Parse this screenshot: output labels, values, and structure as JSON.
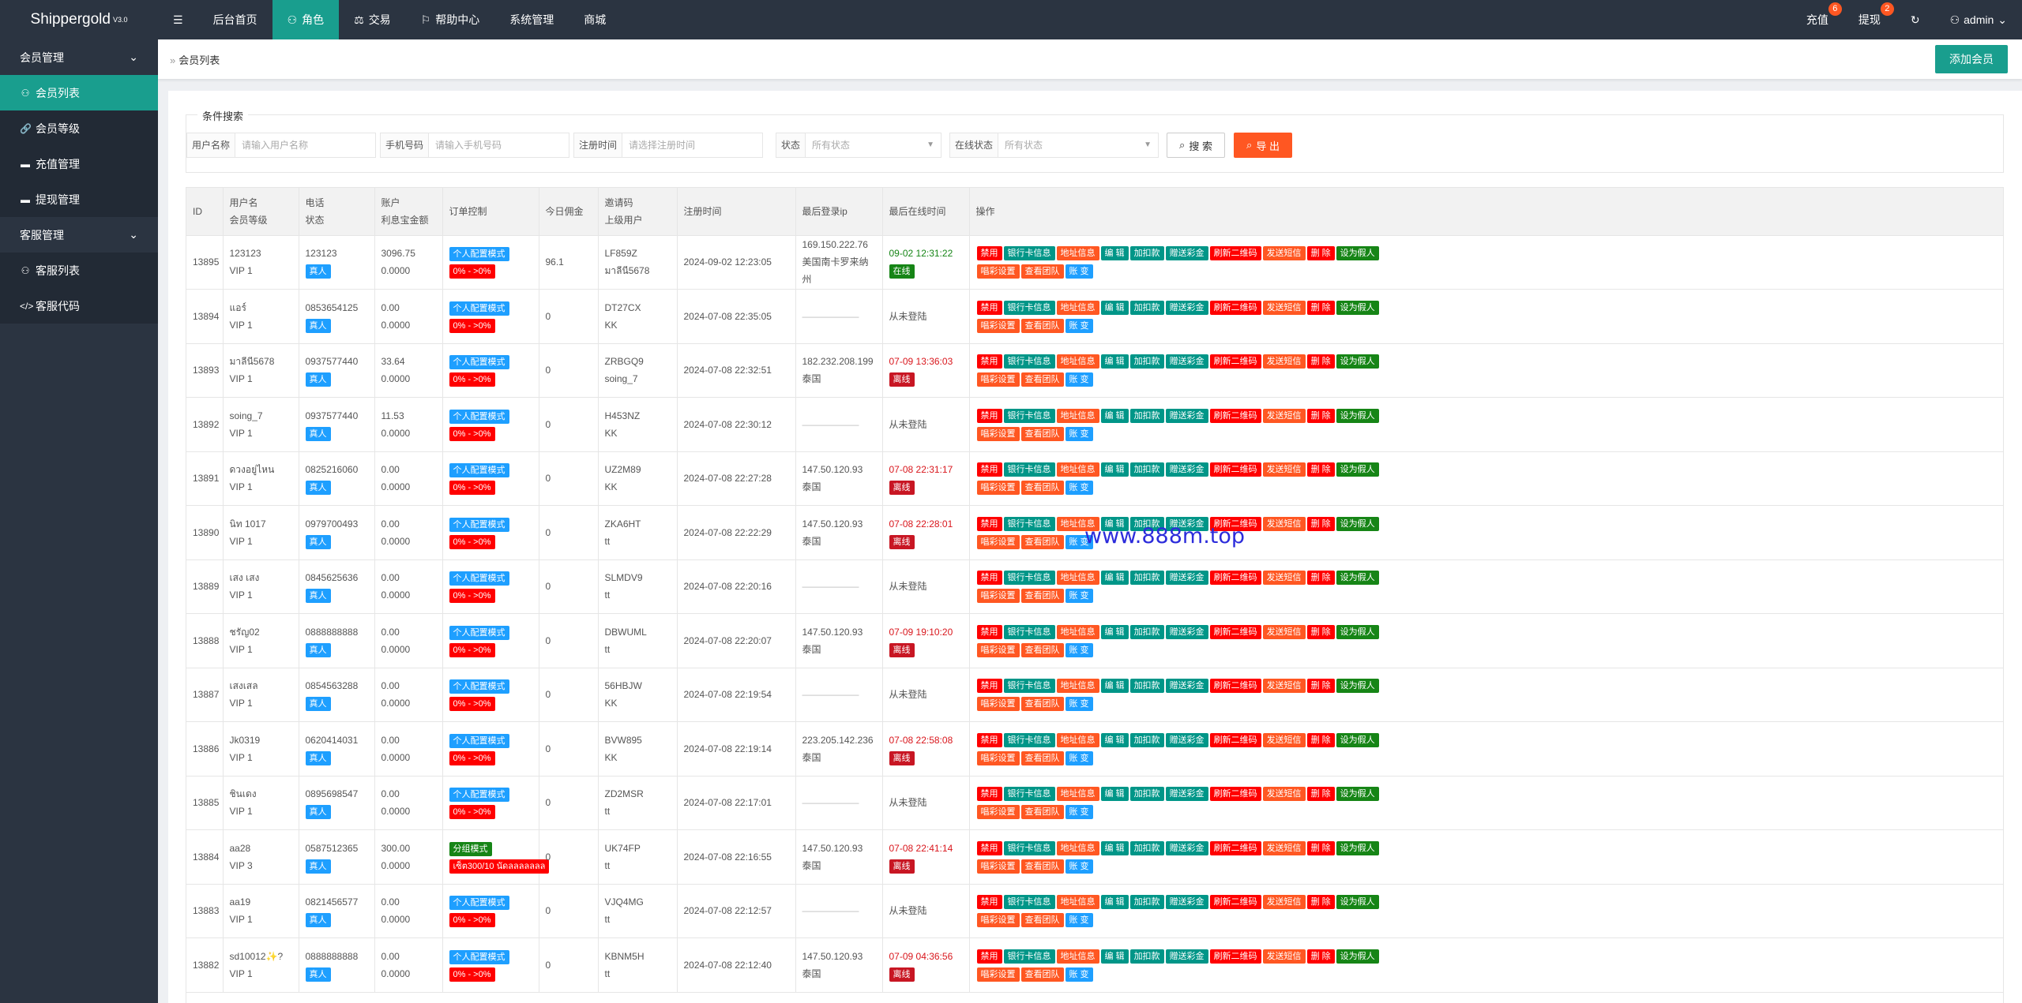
{
  "app": {
    "name": "Shippergold",
    "version": "V3.0"
  },
  "topnav": [
    {
      "label": "后台首页",
      "icon": ""
    },
    {
      "label": "角色",
      "icon": "user-icon",
      "active": true
    },
    {
      "label": "交易",
      "icon": "scale-icon"
    },
    {
      "label": "帮助中心",
      "icon": "flag-icon"
    },
    {
      "label": "系统管理",
      "icon": ""
    },
    {
      "label": "商城",
      "icon": ""
    }
  ],
  "topright": {
    "recharge": {
      "label": "充值",
      "badge": "6"
    },
    "withdraw": {
      "label": "提现",
      "badge": "2"
    },
    "user": "admin"
  },
  "sidebar": {
    "group1": "会员管理",
    "items1": [
      {
        "label": "会员列表",
        "icon": "user-icon",
        "active": true
      },
      {
        "label": "会员等级",
        "icon": "link-icon"
      },
      {
        "label": "充值管理",
        "icon": "chat-icon"
      },
      {
        "label": "提现管理",
        "icon": "chat-icon"
      }
    ],
    "group2": "客服管理",
    "items2": [
      {
        "label": "客服列表",
        "icon": "users-icon"
      },
      {
        "label": "客服代码",
        "icon": "code-icon"
      }
    ]
  },
  "breadcrumb": "会员列表",
  "add_button": "添加会员",
  "search": {
    "legend": "条件搜索",
    "username": {
      "label": "用户名称",
      "placeholder": "请输入用户名称"
    },
    "phone": {
      "label": "手机号码",
      "placeholder": "请输入手机号码"
    },
    "regtime": {
      "label": "注册时间",
      "placeholder": "请选择注册时间"
    },
    "status": {
      "label": "状态",
      "value": "所有状态"
    },
    "online": {
      "label": "在线状态",
      "value": "所有状态"
    },
    "search_btn": "搜 索",
    "export_btn": "导 出"
  },
  "table": {
    "headers": {
      "id": "ID",
      "user1": "用户名",
      "user2": "会员等级",
      "phone1": "电话",
      "phone2": "状态",
      "acct1": "账户",
      "acct2": "利息宝金额",
      "order": "订单控制",
      "commission": "今日佣金",
      "code1": "邀请码",
      "code2": "上级用户",
      "regtime": "注册时间",
      "lastip": "最后登录ip",
      "lastonline": "最后在线时间",
      "ops": "操作"
    },
    "ops_row1": [
      "禁用",
      "银行卡信息",
      "地址信息",
      "编 辑",
      "加扣款",
      "赠送彩金",
      "刷新二维码",
      "发送短信",
      "删 除",
      "设为假人"
    ],
    "ops_row2": [
      "唱彩设置",
      "查看团队",
      "账 变"
    ],
    "rows": [
      {
        "id": "13895",
        "name": "123123",
        "level": "VIP 1",
        "phone": "123123",
        "status": "真人",
        "balance": "3096.75",
        "interest": "0.0000",
        "order_mode": "个人配置模式",
        "order_range": "0% - >0%",
        "commission": "96.1",
        "code": "LF859Z",
        "parent": "มาลีนี5678",
        "regtime": "2024-09-02 12:23:05",
        "ip": "169.150.222.76",
        "ip_loc": "美国南卡罗来纳州",
        "last_online": "09-02 12:31:22",
        "online_state": "在线",
        "online_type": "on"
      },
      {
        "id": "13894",
        "name": "แอร์",
        "level": "VIP 1",
        "phone": "0853654125",
        "status": "真人",
        "balance": "0.00",
        "interest": "0.0000",
        "order_mode": "个人配置模式",
        "order_range": "0% - >0%",
        "commission": "0",
        "code": "DT27CX",
        "parent": "KK",
        "regtime": "2024-07-08 22:35:05",
        "ip": "",
        "ip_loc": "",
        "last_online": "从未登陆",
        "online_state": "",
        "online_type": "never"
      },
      {
        "id": "13893",
        "name": "มาลีนี5678",
        "level": "VIP 1",
        "phone": "0937577440",
        "status": "真人",
        "balance": "33.64",
        "interest": "0.0000",
        "order_mode": "个人配置模式",
        "order_range": "0% - >0%",
        "commission": "0",
        "code": "ZRBGQ9",
        "parent": "soing_7",
        "regtime": "2024-07-08 22:32:51",
        "ip": "182.232.208.199",
        "ip_loc": "泰国",
        "last_online": "07-09 13:36:03",
        "online_state": "离线",
        "online_type": "off"
      },
      {
        "id": "13892",
        "name": "soing_7",
        "level": "VIP 1",
        "phone": "0937577440",
        "status": "真人",
        "balance": "11.53",
        "interest": "0.0000",
        "order_mode": "个人配置模式",
        "order_range": "0% - >0%",
        "commission": "0",
        "code": "H453NZ",
        "parent": "KK",
        "regtime": "2024-07-08 22:30:12",
        "ip": "",
        "ip_loc": "",
        "last_online": "从未登陆",
        "online_state": "",
        "online_type": "never"
      },
      {
        "id": "13891",
        "name": "ดวงอยู่ไหน",
        "level": "VIP 1",
        "phone": "0825216060",
        "status": "真人",
        "balance": "0.00",
        "interest": "0.0000",
        "order_mode": "个人配置模式",
        "order_range": "0% - >0%",
        "commission": "0",
        "code": "UZ2M89",
        "parent": "KK",
        "regtime": "2024-07-08 22:27:28",
        "ip": "147.50.120.93",
        "ip_loc": "泰国",
        "last_online": "07-08 22:31:17",
        "online_state": "离线",
        "online_type": "off"
      },
      {
        "id": "13890",
        "name": "นิท 1017",
        "level": "VIP 1",
        "phone": "0979700493",
        "status": "真人",
        "balance": "0.00",
        "interest": "0.0000",
        "order_mode": "个人配置模式",
        "order_range": "0% - >0%",
        "commission": "0",
        "code": "ZKA6HT",
        "parent": "tt",
        "regtime": "2024-07-08 22:22:29",
        "ip": "147.50.120.93",
        "ip_loc": "泰国",
        "last_online": "07-08 22:28:01",
        "online_state": "离线",
        "online_type": "off"
      },
      {
        "id": "13889",
        "name": "เสง เสง",
        "level": "VIP 1",
        "phone": "0845625636",
        "status": "真人",
        "balance": "0.00",
        "interest": "0.0000",
        "order_mode": "个人配置模式",
        "order_range": "0% - >0%",
        "commission": "0",
        "code": "SLMDV9",
        "parent": "tt",
        "regtime": "2024-07-08 22:20:16",
        "ip": "",
        "ip_loc": "",
        "last_online": "从未登陆",
        "online_state": "",
        "online_type": "never"
      },
      {
        "id": "13888",
        "name": "ชรัญ02",
        "level": "VIP 1",
        "phone": "0888888888",
        "status": "真人",
        "balance": "0.00",
        "interest": "0.0000",
        "order_mode": "个人配置模式",
        "order_range": "0% - >0%",
        "commission": "0",
        "code": "DBWUML",
        "parent": "tt",
        "regtime": "2024-07-08 22:20:07",
        "ip": "147.50.120.93",
        "ip_loc": "泰国",
        "last_online": "07-09 19:10:20",
        "online_state": "离线",
        "online_type": "off"
      },
      {
        "id": "13887",
        "name": "เสงเสล",
        "level": "VIP 1",
        "phone": "0854563288",
        "status": "真人",
        "balance": "0.00",
        "interest": "0.0000",
        "order_mode": "个人配置模式",
        "order_range": "0% - >0%",
        "commission": "0",
        "code": "56HBJW",
        "parent": "KK",
        "regtime": "2024-07-08 22:19:54",
        "ip": "",
        "ip_loc": "",
        "last_online": "从未登陆",
        "online_state": "",
        "online_type": "never"
      },
      {
        "id": "13886",
        "name": "Jk0319",
        "level": "VIP 1",
        "phone": "0620414031",
        "status": "真人",
        "balance": "0.00",
        "interest": "0.0000",
        "order_mode": "个人配置模式",
        "order_range": "0% - >0%",
        "commission": "0",
        "code": "BVW895",
        "parent": "KK",
        "regtime": "2024-07-08 22:19:14",
        "ip": "223.205.142.236",
        "ip_loc": "泰国",
        "last_online": "07-08 22:58:08",
        "online_state": "离线",
        "online_type": "off"
      },
      {
        "id": "13885",
        "name": "ชินเดง",
        "level": "VIP 1",
        "phone": "0895698547",
        "status": "真人",
        "balance": "0.00",
        "interest": "0.0000",
        "order_mode": "个人配置模式",
        "order_range": "0% - >0%",
        "commission": "0",
        "code": "ZD2MSR",
        "parent": "tt",
        "regtime": "2024-07-08 22:17:01",
        "ip": "",
        "ip_loc": "",
        "last_online": "从未登陆",
        "online_state": "",
        "online_type": "never"
      },
      {
        "id": "13884",
        "name": "aa28",
        "level": "VIP 3",
        "phone": "0587512365",
        "status": "真人",
        "balance": "300.00",
        "interest": "0.0000",
        "order_mode": "分组模式",
        "order_range": "เซ็ต300/10 นัดลลลลลลล",
        "order_mode_style": "green",
        "order_range_style": "red",
        "commission": "0",
        "code": "UK74FP",
        "parent": "tt",
        "regtime": "2024-07-08 22:16:55",
        "ip": "147.50.120.93",
        "ip_loc": "泰国",
        "last_online": "07-08 22:41:14",
        "online_state": "离线",
        "online_type": "off"
      },
      {
        "id": "13883",
        "name": "aa19",
        "level": "VIP 1",
        "phone": "0821456577",
        "status": "真人",
        "balance": "0.00",
        "interest": "0.0000",
        "order_mode": "个人配置模式",
        "order_range": "0% - >0%",
        "commission": "0",
        "code": "VJQ4MG",
        "parent": "tt",
        "regtime": "2024-07-08 22:12:57",
        "ip": "",
        "ip_loc": "",
        "last_online": "从未登陆",
        "online_state": "",
        "online_type": "never"
      },
      {
        "id": "13882",
        "name": "sd10012✨?",
        "level": "VIP 1",
        "phone": "0888888888",
        "status": "真人",
        "balance": "0.00",
        "interest": "0.0000",
        "order_mode": "个人配置模式",
        "order_range": "0% - >0%",
        "commission": "0",
        "code": "KBNM5H",
        "parent": "tt",
        "regtime": "2024-07-08 22:12:40",
        "ip": "147.50.120.93",
        "ip_loc": "泰国",
        "last_online": "07-09 04:36:56",
        "online_state": "离线",
        "online_type": "off"
      }
    ]
  },
  "watermark": "www.888m.top"
}
